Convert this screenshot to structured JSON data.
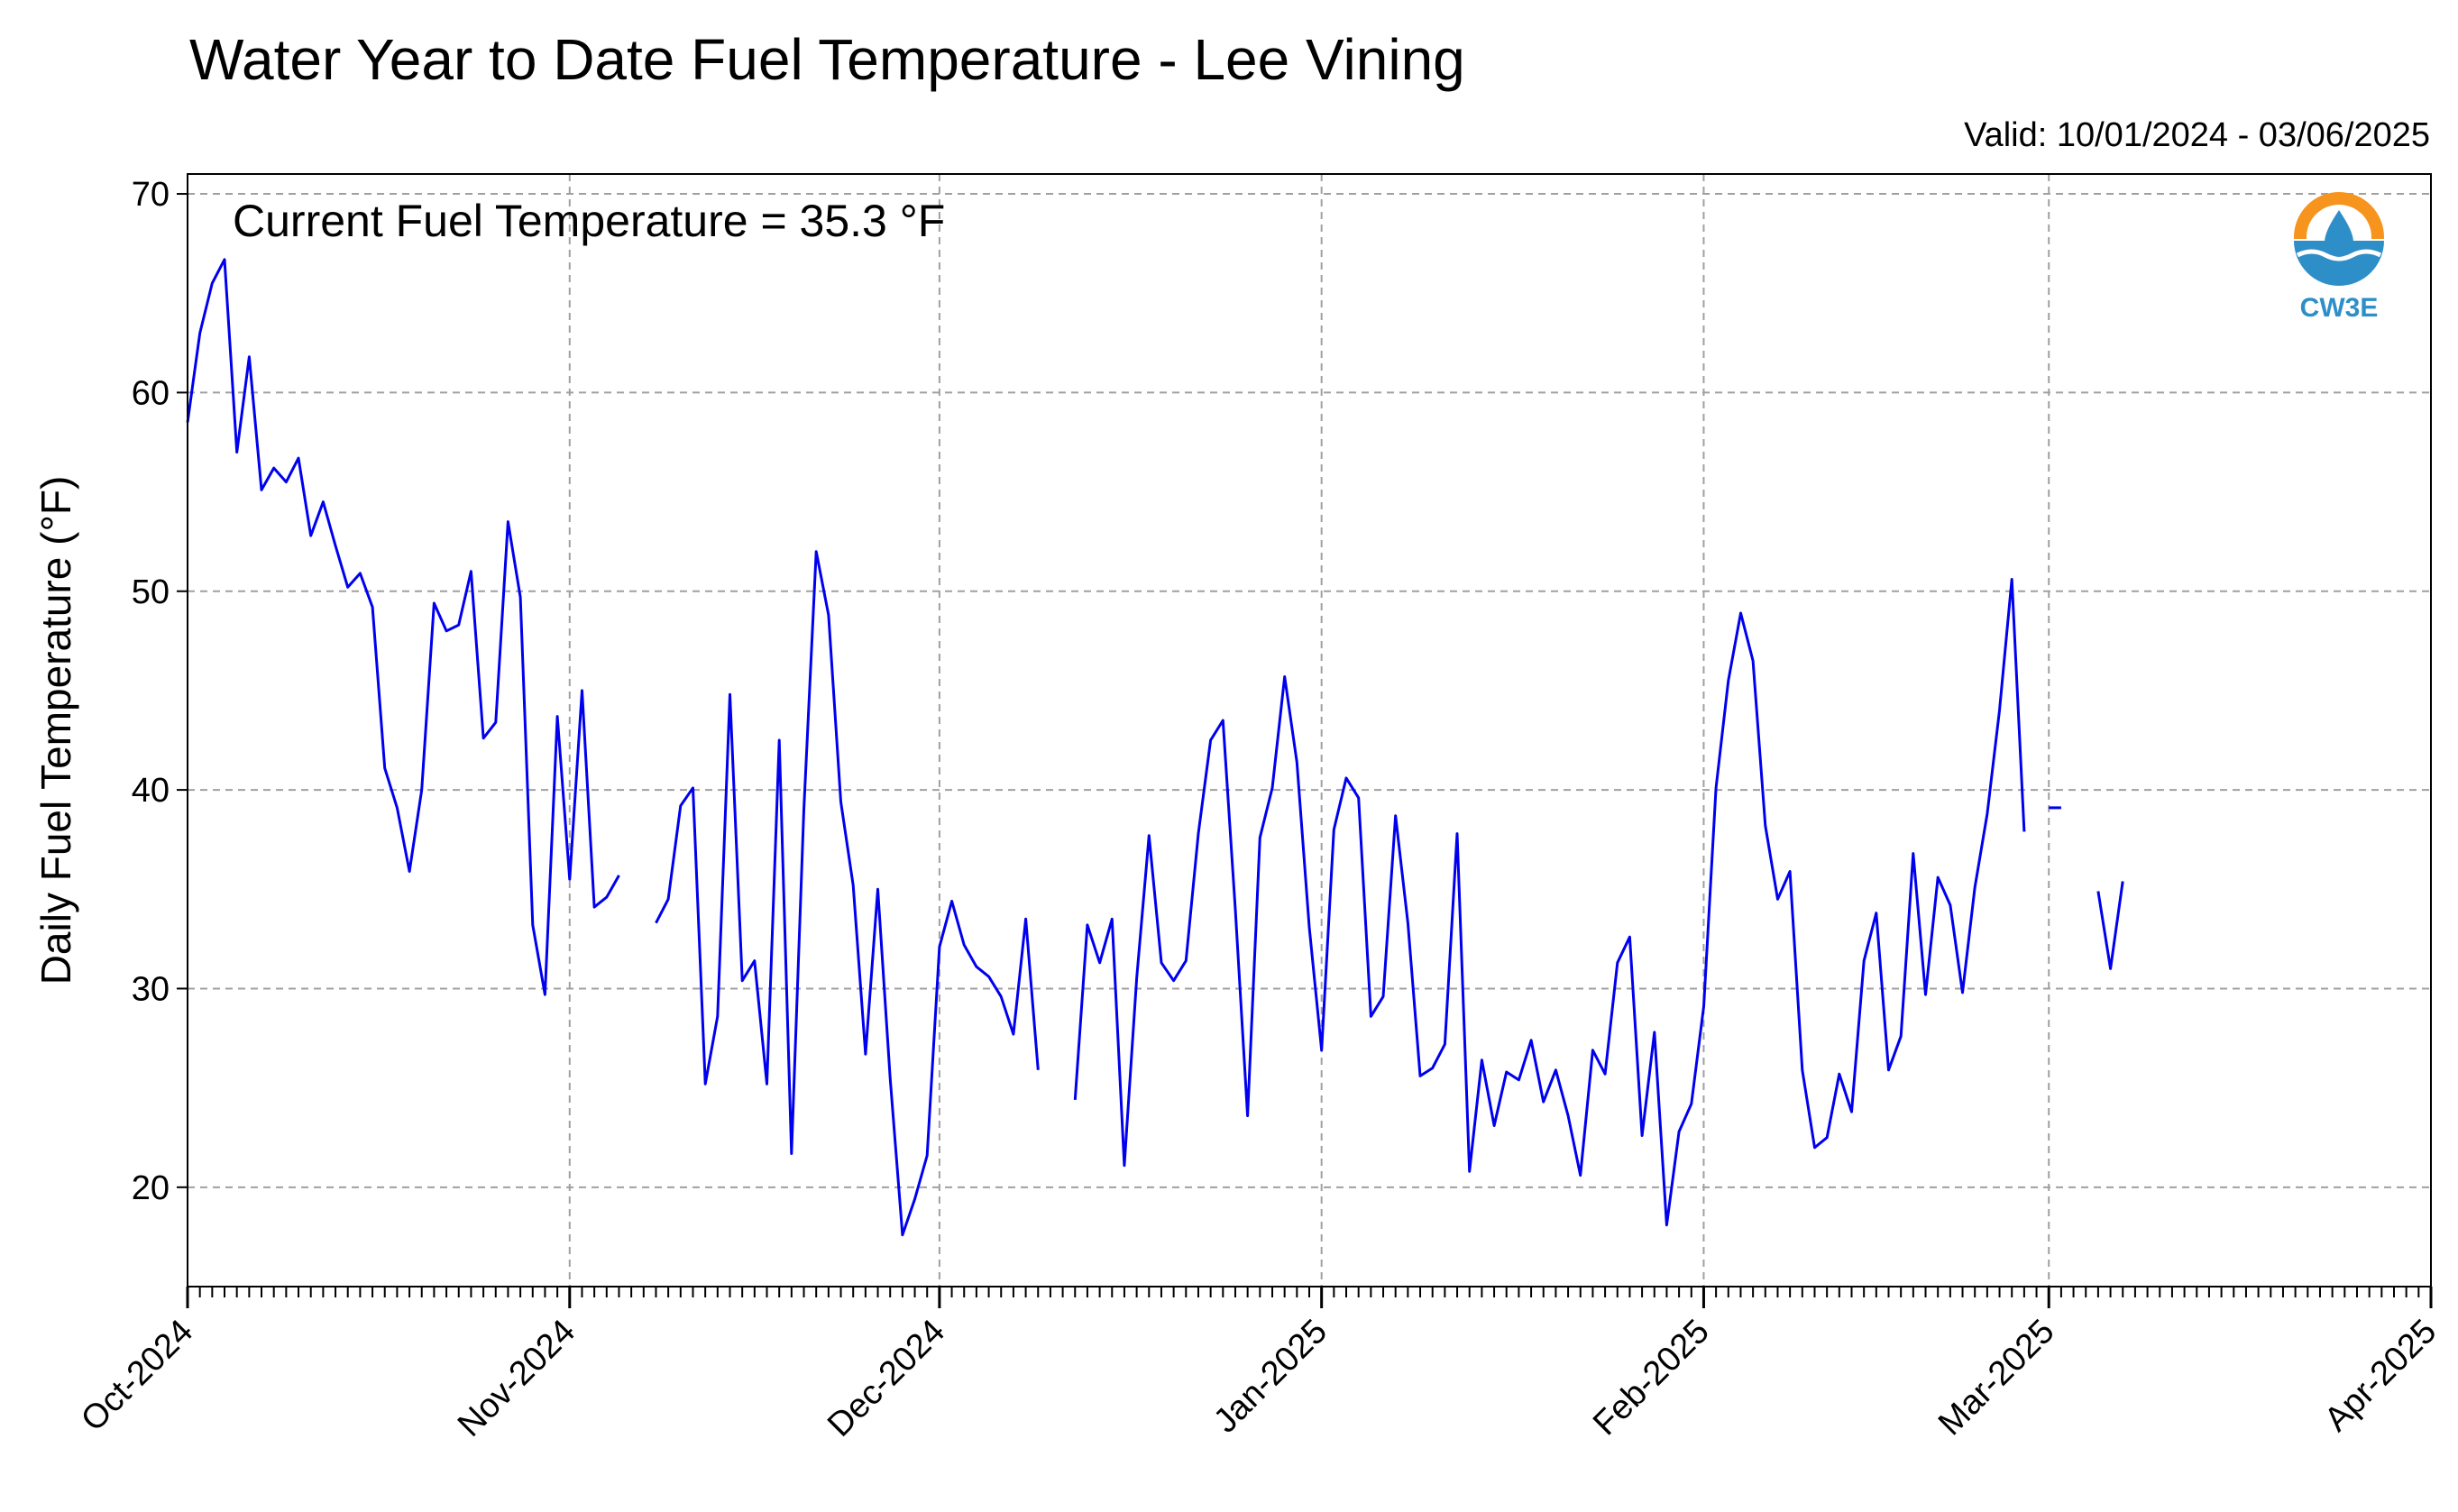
{
  "chart_data": {
    "type": "line",
    "title": "Water Year to Date Fuel Temperature - Lee Vining",
    "subtitle": "Valid: 10/01/2024 - 03/06/2025",
    "annotation": "Current Fuel Temperature = 35.3  °F",
    "xlabel": "",
    "ylabel": "Daily Fuel Temperature (°F)",
    "ylim": [
      15,
      71
    ],
    "yticks": [
      20,
      30,
      40,
      50,
      60,
      70
    ],
    "xlim": [
      "2024-10-01",
      "2025-04-01"
    ],
    "xticks": [
      {
        "date": "2024-10-01",
        "label": "Oct-2024"
      },
      {
        "date": "2024-11-01",
        "label": "Nov-2024"
      },
      {
        "date": "2024-12-01",
        "label": "Dec-2024"
      },
      {
        "date": "2025-01-01",
        "label": "Jan-2025"
      },
      {
        "date": "2025-02-01",
        "label": "Feb-2025"
      },
      {
        "date": "2025-03-01",
        "label": "Mar-2025"
      },
      {
        "date": "2025-04-01",
        "label": "Apr-2025"
      }
    ],
    "minor_ticks": "daily",
    "grid": true,
    "line_color": "#0000ee",
    "logo": {
      "text": "CW3E",
      "colors": [
        "#f7941d",
        "#2e8fc8"
      ]
    },
    "series": [
      {
        "start_date": "2024-10-01",
        "values": [
          58.5,
          63.0,
          65.5,
          66.7,
          57.0,
          61.8,
          55.1,
          56.2,
          55.5,
          56.7,
          52.8,
          54.5,
          52.3,
          50.2,
          50.9,
          49.2,
          41.1,
          39.1,
          35.9,
          40.0,
          49.4,
          48.0,
          48.3,
          51.0,
          42.6,
          43.4,
          53.5,
          49.7,
          33.2,
          29.7,
          43.7,
          35.5,
          45.0,
          34.1,
          34.6,
          35.7,
          null,
          null,
          33.3,
          34.5,
          39.2,
          40.1,
          25.2,
          28.6,
          44.8,
          30.4,
          31.4,
          25.2,
          42.5,
          21.7,
          39.0,
          52.0,
          48.8,
          39.4,
          35.2,
          26.7,
          35.0,
          25.5,
          17.6,
          19.4,
          21.6,
          32.1,
          34.4,
          32.2,
          31.1,
          30.6,
          29.6,
          27.7,
          33.5,
          25.9,
          null,
          null,
          24.4,
          33.2,
          31.3,
          33.5,
          21.1,
          30.5,
          37.7,
          31.3,
          30.4,
          31.4,
          37.8,
          42.5,
          43.5,
          34.0,
          23.6,
          37.6,
          40.1,
          45.7,
          41.4,
          33.1,
          26.9,
          38.0,
          40.6,
          39.6,
          28.6,
          29.6,
          38.7,
          33.3,
          25.6,
          26.0,
          27.2,
          37.8,
          20.8,
          26.4,
          23.1,
          25.8,
          25.4,
          27.4,
          24.3,
          25.9,
          23.6,
          20.6,
          26.9,
          25.7,
          31.3,
          32.6,
          22.6,
          27.8,
          18.1,
          22.8,
          24.2,
          29.1,
          40.1,
          45.5,
          48.9,
          46.5,
          38.2,
          34.5,
          35.9,
          25.9,
          22.0,
          22.5,
          25.7,
          23.8,
          31.4,
          33.8,
          25.9,
          27.6,
          36.8,
          29.7,
          35.6,
          34.2,
          29.8,
          35.1,
          38.8,
          44.0,
          50.6,
          37.9,
          null,
          39.1,
          39.1,
          null,
          null,
          34.9,
          31.0,
          35.4
        ]
      }
    ]
  }
}
